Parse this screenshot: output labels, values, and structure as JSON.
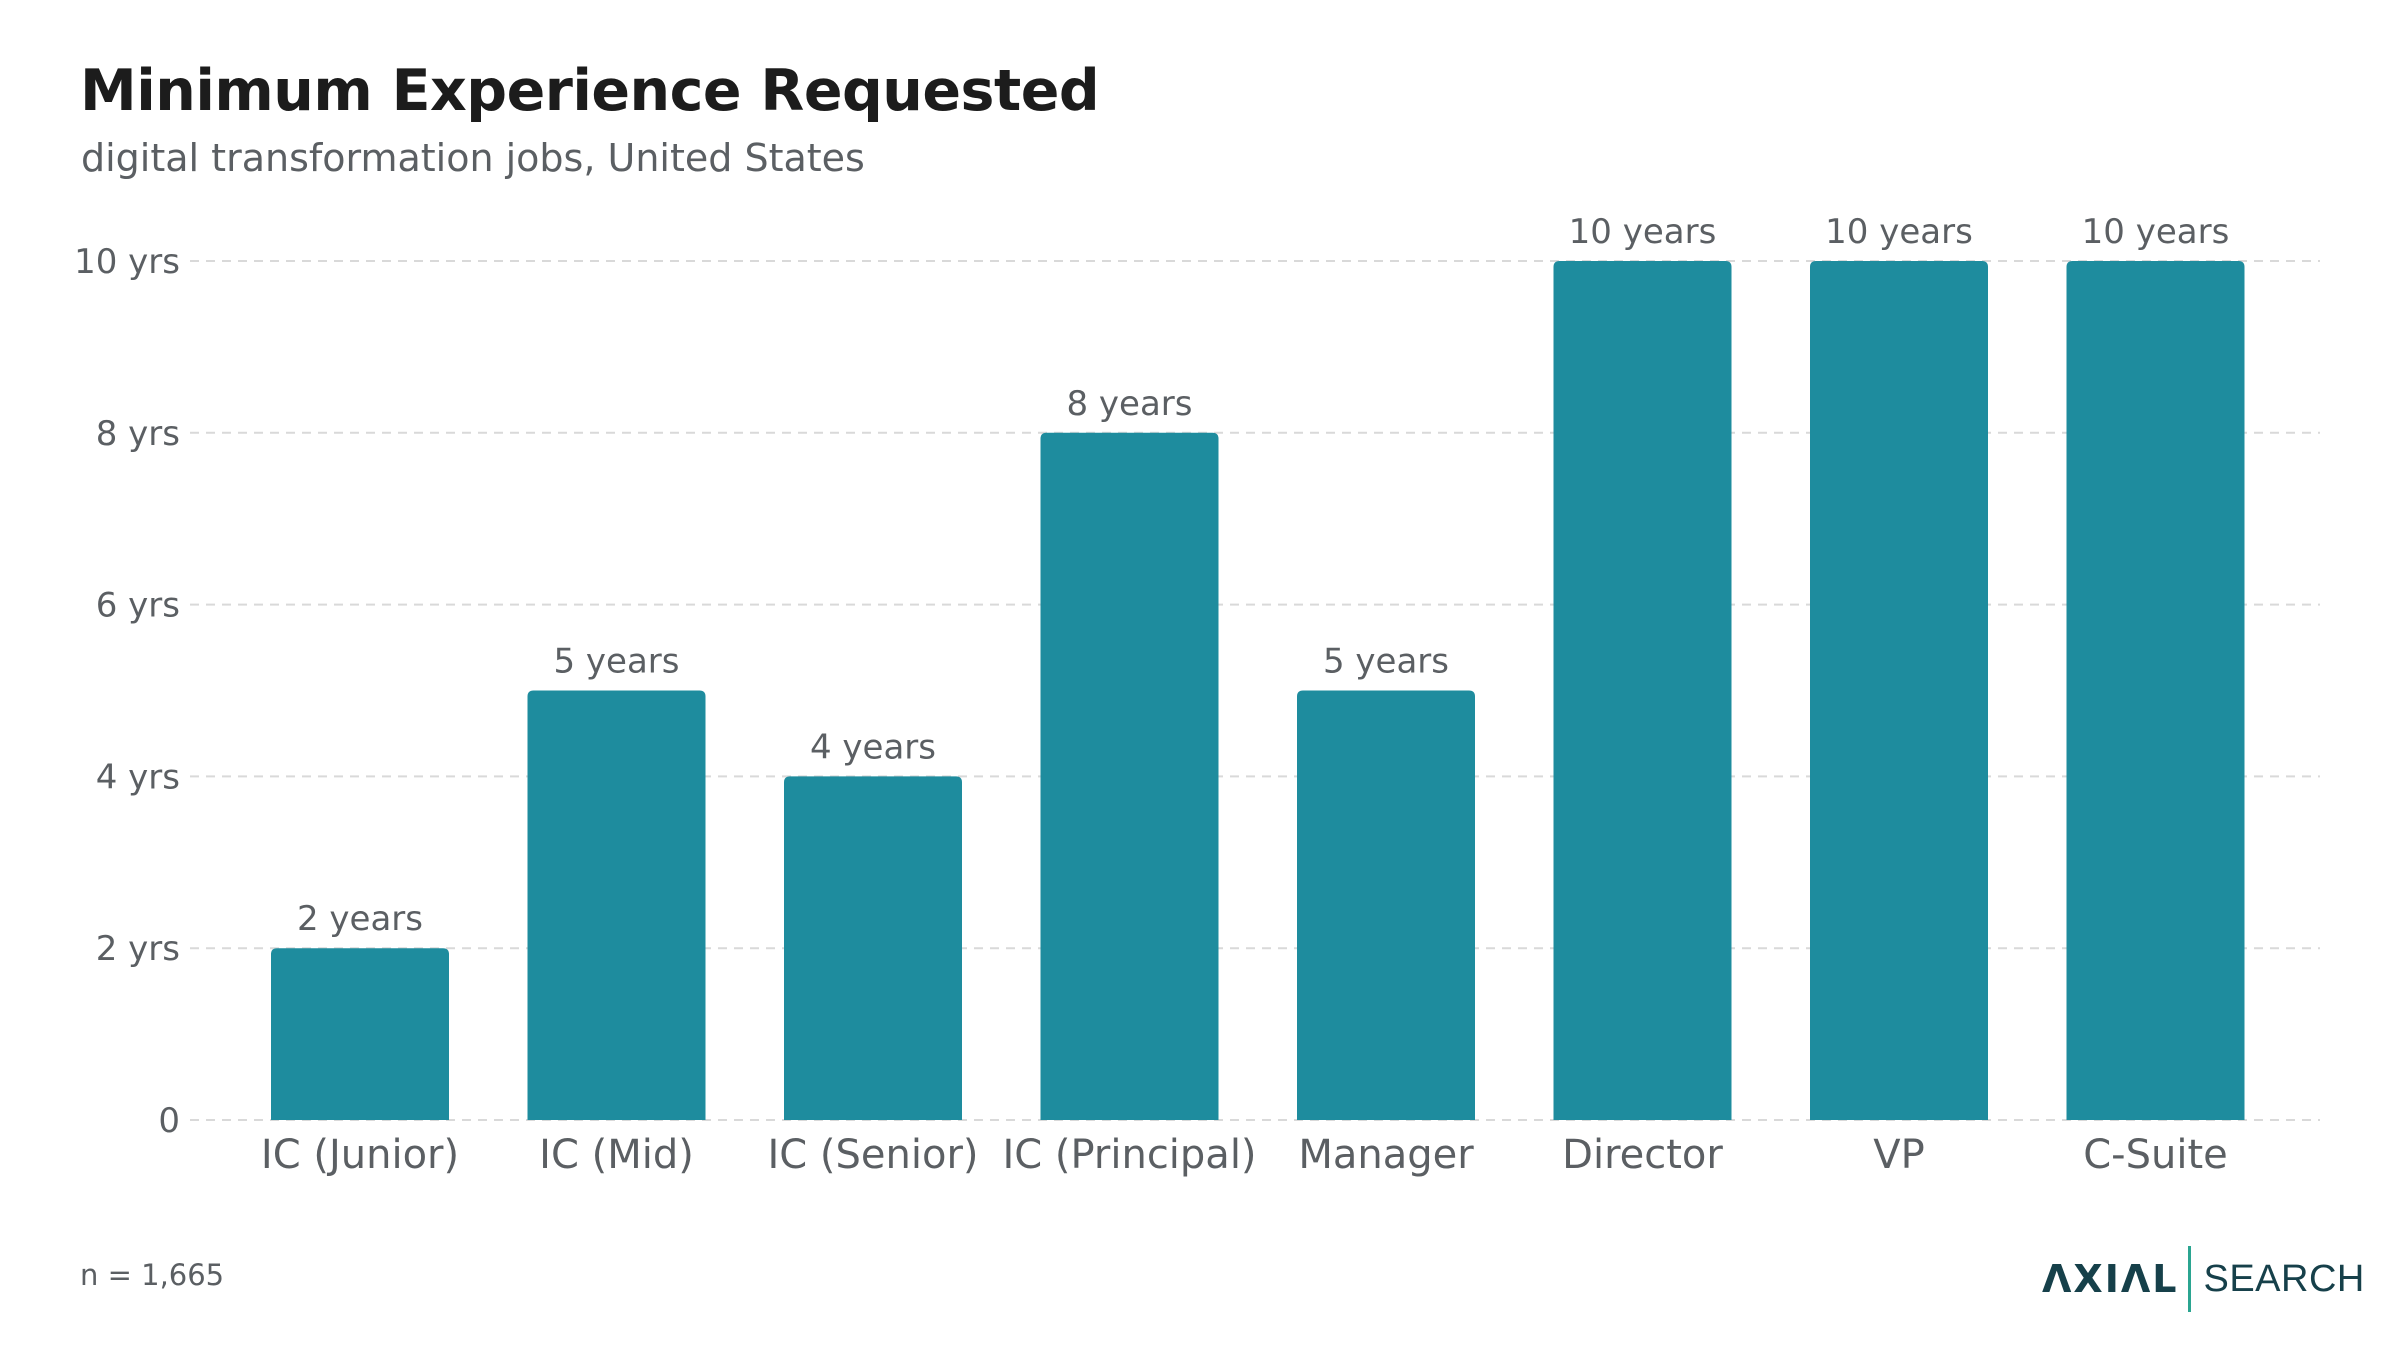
{
  "title": "Minimum Experience Requested",
  "subtitle": "digital transformation jobs, United States",
  "footnote": "n = 1,665",
  "logo": {
    "mark": "ΛXIΛL",
    "word": "SEARCH"
  },
  "colors": {
    "bar": "#1e8c9e",
    "grid": "#d9d9d9",
    "text": "#5b5f63",
    "title": "#1c1c1c"
  },
  "chart_data": {
    "type": "bar",
    "categories": [
      "IC (Junior)",
      "IC (Mid)",
      "IC (Senior)",
      "IC (Principal)",
      "Manager",
      "Director",
      "VP",
      "C-Suite"
    ],
    "values": [
      2,
      5,
      4,
      8,
      5,
      10,
      10,
      10
    ],
    "data_labels": [
      "2 years",
      "5 years",
      "4 years",
      "8 years",
      "5 years",
      "10 years",
      "10 years",
      "10 years"
    ],
    "ylim": [
      0,
      10
    ],
    "y_ticks": [
      0,
      2,
      4,
      6,
      8,
      10
    ],
    "y_tick_labels": [
      "0",
      "2 yrs",
      "4 yrs",
      "6 yrs",
      "8 yrs",
      "10 yrs"
    ],
    "grid": true
  }
}
